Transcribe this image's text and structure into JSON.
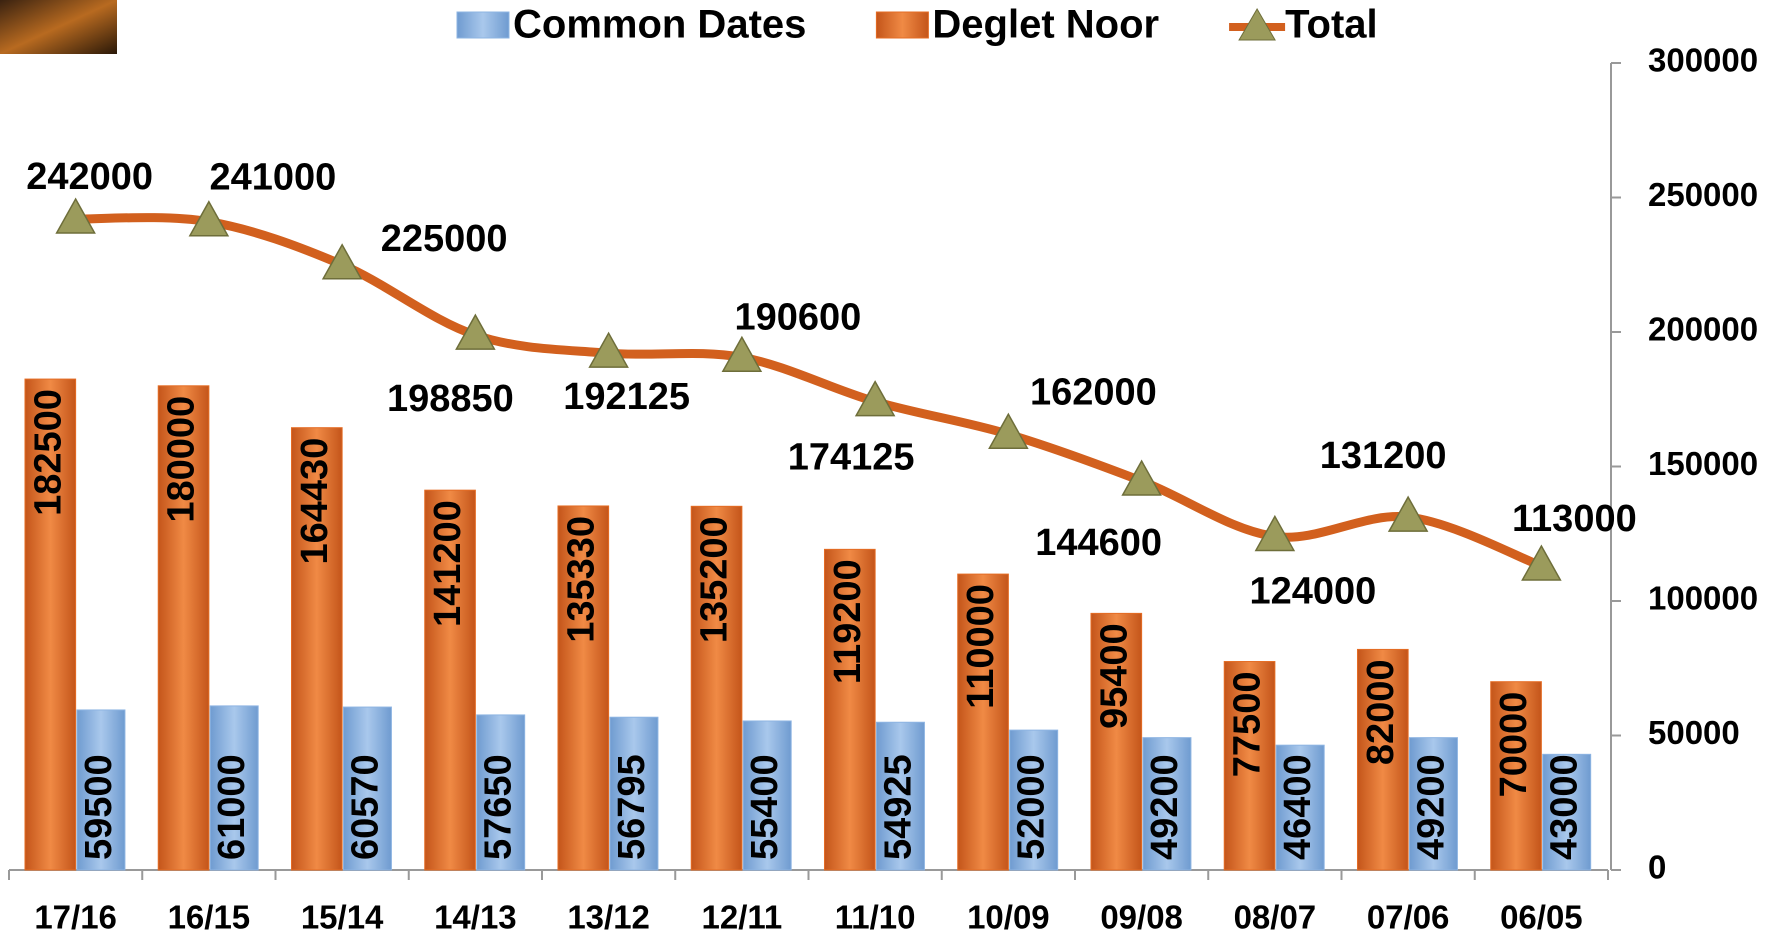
{
  "chart_data": {
    "type": "bar_line",
    "categories": [
      "17/16",
      "16/15",
      "15/14",
      "14/13",
      "13/12",
      "12/11",
      "11/10",
      "10/09",
      "09/08",
      "08/07",
      "07/06",
      "06/05"
    ],
    "series": [
      {
        "name": "Common Dates",
        "color": "#8db4e2",
        "values": [
          59500,
          61000,
          60570,
          57650,
          56795,
          55400,
          54925,
          52000,
          49200,
          46400,
          49200,
          43000
        ]
      },
      {
        "name": "Deglet Noor",
        "color": "#e46c24",
        "values": [
          182500,
          180000,
          164430,
          141200,
          135330,
          135200,
          119200,
          110000,
          95400,
          77500,
          82000,
          70000
        ]
      },
      {
        "name": "Total",
        "type": "line",
        "color": "#d2601e",
        "marker_color": "#9b9b5c",
        "values": [
          242000,
          241000,
          225000,
          198850,
          192125,
          190600,
          174125,
          162000,
          144600,
          124000,
          131200,
          113000
        ]
      }
    ],
    "ylim": [
      0,
      300000
    ],
    "yticks": [
      0,
      50000,
      100000,
      150000,
      200000,
      250000,
      300000
    ]
  }
}
